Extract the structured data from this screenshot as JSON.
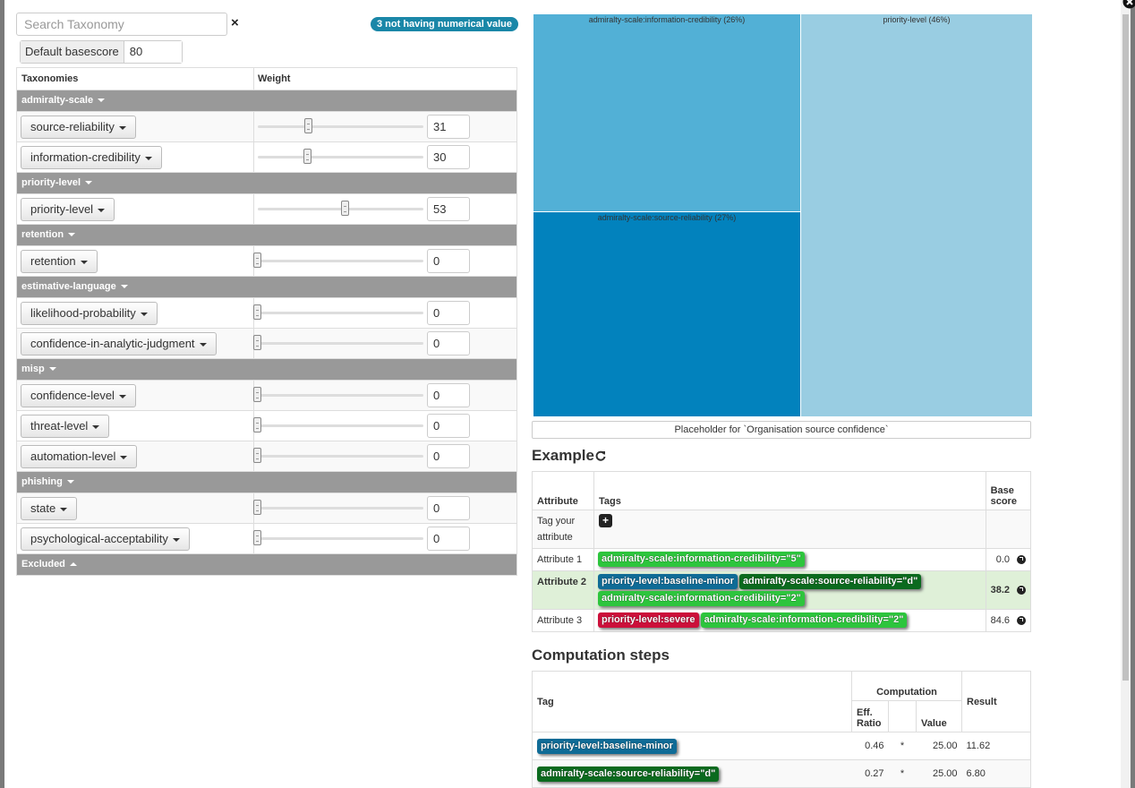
{
  "search": {
    "placeholder": "Search Taxonomy",
    "clear": "×"
  },
  "missing_badge": "3 not having numerical value",
  "default_basescore": {
    "label": "Default basescore",
    "value": 80
  },
  "weights": {
    "headers": [
      "Taxonomies",
      "Weight"
    ],
    "range": [
      0,
      100
    ],
    "groups": [
      {
        "name": "admiralty-scale",
        "rows": [
          {
            "name": "source-reliability",
            "weight": 31
          },
          {
            "name": "information-credibility",
            "weight": 30
          }
        ]
      },
      {
        "name": "priority-level",
        "rows": [
          {
            "name": "priority-level",
            "weight": 53
          }
        ]
      },
      {
        "name": "retention",
        "rows": [
          {
            "name": "retention",
            "weight": 0
          }
        ]
      },
      {
        "name": "estimative-language",
        "rows": [
          {
            "name": "likelihood-probability",
            "weight": 0
          },
          {
            "name": "confidence-in-analytic-judgment",
            "weight": 0
          }
        ]
      },
      {
        "name": "misp",
        "rows": [
          {
            "name": "confidence-level",
            "weight": 0
          },
          {
            "name": "threat-level",
            "weight": 0
          },
          {
            "name": "automation-level",
            "weight": 0
          }
        ]
      },
      {
        "name": "phishing",
        "rows": [
          {
            "name": "state",
            "weight": 0
          },
          {
            "name": "psychological-acceptability",
            "weight": 0
          }
        ]
      }
    ],
    "excluded": "Excluded"
  },
  "treemap": {
    "cells": [
      "admiralty-scale:information-credibility (26%)",
      "admiralty-scale:source-reliability (27%)",
      "priority-level (46%)"
    ]
  },
  "placeholder": "Placeholder for `Organisation source confidence`",
  "example": {
    "title": "Example",
    "headers": [
      "Attribute",
      "Tags",
      "Base score"
    ],
    "add_row": {
      "label": "Tag your attribute",
      "button": "+"
    },
    "rows": [
      {
        "attribute": "Attribute 1",
        "highlighted": false,
        "tags": [
          {
            "text": "admiralty-scale:information-credibility=\"5\"",
            "color": "#2dc53d"
          }
        ],
        "score": "0.0"
      },
      {
        "attribute": "Attribute 2",
        "highlighted": true,
        "tags": [
          {
            "text": "priority-level:baseline-minor",
            "color": "#0f6b96"
          },
          {
            "text": "admiralty-scale:source-reliability=\"d\"",
            "color": "#0b6a1e"
          },
          {
            "text": "admiralty-scale:information-credibility=\"2\"",
            "color": "#2dc53d"
          }
        ],
        "score": "38.2"
      },
      {
        "attribute": "Attribute 3",
        "highlighted": false,
        "tags": [
          {
            "text": "priority-level:severe",
            "color": "#cc0f3a"
          },
          {
            "text": "admiralty-scale:information-credibility=\"2\"",
            "color": "#2dc53d"
          }
        ],
        "score": "84.6"
      }
    ]
  },
  "computation": {
    "title": "Computation steps",
    "headers": {
      "tag": "Tag",
      "computation": "Computation",
      "ratio": "Eff. Ratio",
      "value": "Value",
      "result": "Result"
    },
    "rows": [
      {
        "tag": {
          "text": "priority-level:baseline-minor",
          "color": "#0f6b96"
        },
        "ratio": "0.46",
        "op": "*",
        "value": "25.00",
        "result": "11.62"
      },
      {
        "tag": {
          "text": "admiralty-scale:source-reliability=\"d\"",
          "color": "#0b6a1e"
        },
        "ratio": "0.27",
        "op": "*",
        "value": "25.00",
        "result": "6.80"
      }
    ]
  }
}
